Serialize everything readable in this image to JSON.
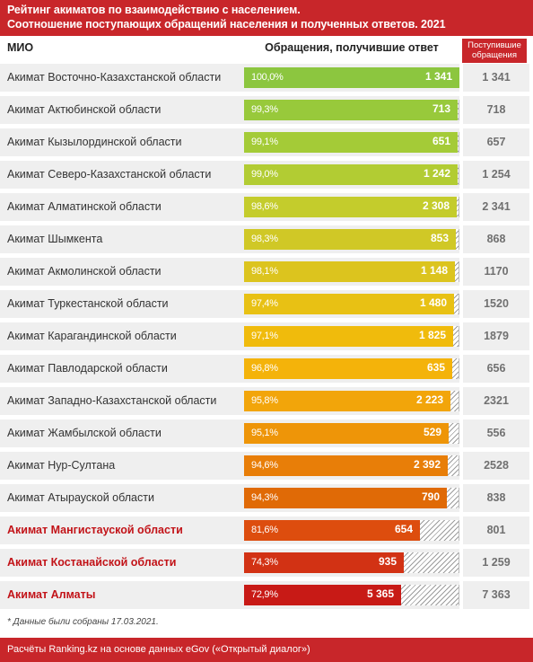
{
  "header": {
    "line1": "Рейтинг акиматов по взаимодействию с населением.",
    "line2": "Соотношение поступающих обращений населения и полученных ответов. 2021"
  },
  "columns": {
    "mio": "МИО",
    "responses": "Обращения, получившие ответ",
    "received": "Поступившие обращения"
  },
  "colors": {
    "brand": "#c8262a",
    "highlight_text": "#c21318",
    "row_bg": "#efefef"
  },
  "rows": [
    {
      "name": "Акимат Восточно-Казахстанской области",
      "pct": "100,0%",
      "answered": "1 341",
      "received": "1 341",
      "color": "#8cc63f",
      "highlight": false
    },
    {
      "name": "Акимат Актюбинской области",
      "pct": "99,3%",
      "answered": "713",
      "received": "718",
      "color": "#98c93b",
      "highlight": false
    },
    {
      "name": "Акимат Кызылординской области",
      "pct": "99,1%",
      "answered": "651",
      "received": "657",
      "color": "#a4cb37",
      "highlight": false
    },
    {
      "name": "Акимат Северо-Казахстанской области",
      "pct": "99,0%",
      "answered": "1 242",
      "received": "1 254",
      "color": "#b2cc33",
      "highlight": false
    },
    {
      "name": "Акимат Алматинской области",
      "pct": "98,6%",
      "answered": "2 308",
      "received": "2 341",
      "color": "#c4cc2c",
      "highlight": false
    },
    {
      "name": "Акимат Шымкента",
      "pct": "98,3%",
      "answered": "853",
      "received": "868",
      "color": "#d0c826",
      "highlight": false
    },
    {
      "name": "Акимат Акмолинской области",
      "pct": "98,1%",
      "answered": "1 148",
      "received": "1170",
      "color": "#dcc41e",
      "highlight": false
    },
    {
      "name": "Акимат Туркестанской области",
      "pct": "97,4%",
      "answered": "1 480",
      "received": "1520",
      "color": "#e8c114",
      "highlight": false
    },
    {
      "name": "Акимат Карагандинской области",
      "pct": "97,1%",
      "answered": "1 825",
      "received": "1879",
      "color": "#f0bb0c",
      "highlight": false
    },
    {
      "name": "Акимат Павлодарской области",
      "pct": "96,8%",
      "answered": "635",
      "received": "656",
      "color": "#f4b30a",
      "highlight": false
    },
    {
      "name": "Акимат Западно-Казахстанской области",
      "pct": "95,8%",
      "answered": "2 223",
      "received": "2321",
      "color": "#f2a50a",
      "highlight": false
    },
    {
      "name": "Акимат Жамбылской области",
      "pct": "95,1%",
      "answered": "529",
      "received": "556",
      "color": "#ee9508",
      "highlight": false
    },
    {
      "name": "Акимат Нур-Султана",
      "pct": "94,6%",
      "answered": "2 392",
      "received": "2528",
      "color": "#e87e08",
      "highlight": false
    },
    {
      "name": "Акимат Атырауской области",
      "pct": "94,3%",
      "answered": "790",
      "received": "838",
      "color": "#e06a06",
      "highlight": false
    },
    {
      "name": "Акимат Мангистауской области",
      "pct": "81,6%",
      "answered": "654",
      "received": "801",
      "color": "#dd4d0e",
      "highlight": true
    },
    {
      "name": "Акимат Костанайской области",
      "pct": "74,3%",
      "answered": "935",
      "received": "1 259",
      "color": "#d23214",
      "highlight": true
    },
    {
      "name": "Акимат Алматы",
      "pct": "72,9%",
      "answered": "5 365",
      "received": "7 363",
      "color": "#c81a16",
      "highlight": true
    }
  ],
  "chart_data": {
    "type": "bar",
    "orientation": "horizontal",
    "categories": [
      "Акимат Восточно-Казахстанской области",
      "Акимат Актюбинской области",
      "Акимат Кызылординской области",
      "Акимат Северо-Казахстанской области",
      "Акимат Алматинской области",
      "Акимат Шымкента",
      "Акимат Акмолинской области",
      "Акимат Туркестанской области",
      "Акимат Карагандинской области",
      "Акимат Павлодарской области",
      "Акимат Западно-Казахстанской области",
      "Акимат Жамбылской области",
      "Акимат Нур-Султана",
      "Акимат Атырауской области",
      "Акимат Мангистауской области",
      "Акимат Костанайской области",
      "Акимат Алматы"
    ],
    "series": [
      {
        "name": "Обращения, получившие ответ",
        "values": [
          1341,
          713,
          651,
          1242,
          2308,
          853,
          1148,
          1480,
          1825,
          635,
          2223,
          529,
          2392,
          790,
          654,
          935,
          5365
        ]
      },
      {
        "name": "Поступившие обращения",
        "values": [
          1341,
          718,
          657,
          1254,
          2341,
          868,
          1170,
          1520,
          1879,
          656,
          2321,
          556,
          2528,
          838,
          801,
          1259,
          7363
        ]
      }
    ],
    "percent_answered": [
      100.0,
      99.3,
      99.1,
      99.0,
      98.6,
      98.3,
      98.1,
      97.4,
      97.1,
      96.8,
      95.8,
      95.1,
      94.6,
      94.3,
      81.6,
      74.3,
      72.9
    ],
    "title": "Рейтинг акиматов по взаимодействию с населением. Соотношение поступающих обращений населения и полученных ответов. 2021",
    "xlabel": "Обращения, получившие ответ",
    "ylabel": "МИО",
    "xlim": [
      0,
      100
    ],
    "legend": "none",
    "grid": false
  },
  "note": "* Данные были собраны 17.03.2021.",
  "footer": "Расчёты Ranking.kz на основе данных eGov («Открытый диалог»)"
}
